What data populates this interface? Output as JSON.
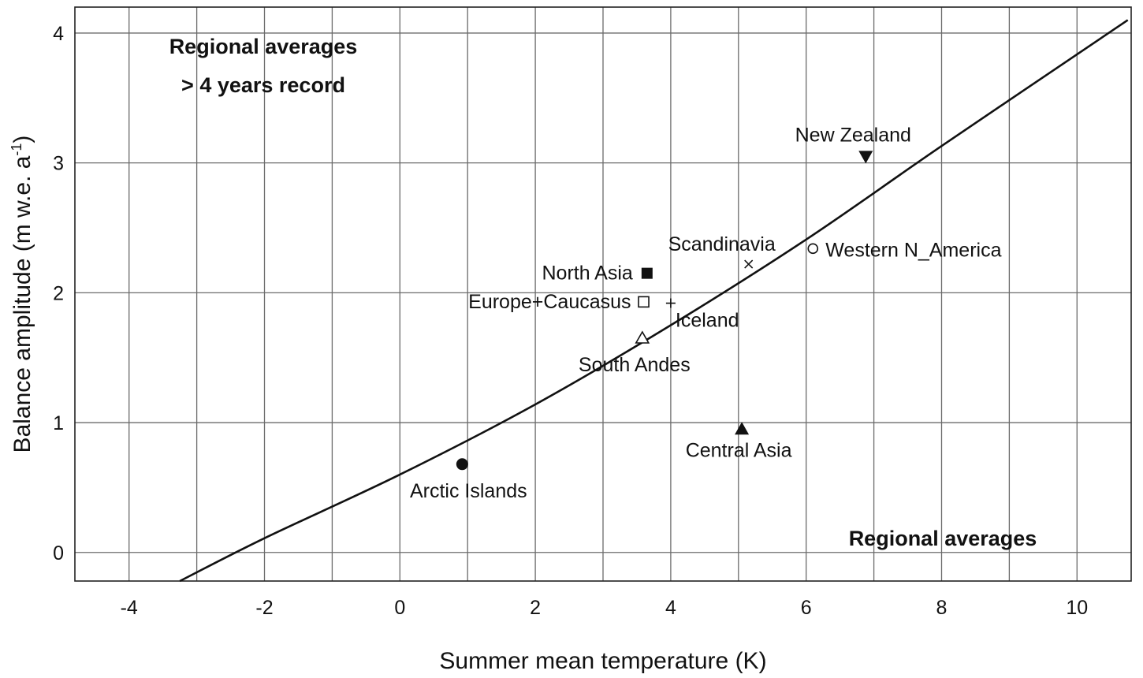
{
  "chart_data": {
    "type": "scatter",
    "xlabel": "Summer mean temperature (K)",
    "ylabel_main": "Balance amplitude (m w.e. a",
    "ylabel_sup": "-1",
    "ylabel_close": ")",
    "xlim": [
      -4.8,
      10.8
    ],
    "ylim": [
      -0.22,
      4.2
    ],
    "x_ticks": [
      -4,
      -2,
      0,
      2,
      4,
      6,
      8,
      10
    ],
    "y_ticks": [
      0,
      1,
      2,
      3,
      4
    ],
    "x_tick_labels": [
      "-4",
      "-2",
      "0",
      "2",
      "4",
      "6",
      "8",
      "10"
    ],
    "y_tick_labels": [
      "0",
      "1",
      "2",
      "3",
      "4"
    ],
    "grid": true,
    "annotations": {
      "top_left_line1": "Regional averages",
      "top_left_line2": "> 4 years record",
      "bottom_right": "Regional averages"
    },
    "points": [
      {
        "label": "Arctic Islands",
        "x": 0.92,
        "y": 0.68,
        "marker": "filled-circle"
      },
      {
        "label": "North Asia",
        "x": 3.65,
        "y": 2.15,
        "marker": "filled-square"
      },
      {
        "label": "Europe+Caucasus",
        "x": 3.6,
        "y": 1.93,
        "marker": "open-square"
      },
      {
        "label": "Iceland",
        "x": 4.0,
        "y": 1.92,
        "marker": "plus"
      },
      {
        "label": "South Andes",
        "x": 3.58,
        "y": 1.65,
        "marker": "open-triangle"
      },
      {
        "label": "Scandinavia",
        "x": 5.15,
        "y": 2.22,
        "marker": "cross"
      },
      {
        "label": "Western N_America",
        "x": 6.1,
        "y": 2.34,
        "marker": "open-circle"
      },
      {
        "label": "New Zealand",
        "x": 6.88,
        "y": 3.05,
        "marker": "filled-triangle-down"
      },
      {
        "label": "Central Asia",
        "x": 5.05,
        "y": 0.95,
        "marker": "filled-triangle-up"
      }
    ],
    "fit_curve": {
      "label": "",
      "x": [
        -3.25,
        -2,
        0,
        2,
        4,
        6,
        8,
        10.75
      ],
      "y": [
        -0.22,
        0.11,
        0.6,
        1.14,
        1.75,
        2.41,
        3.13,
        4.1
      ]
    }
  }
}
